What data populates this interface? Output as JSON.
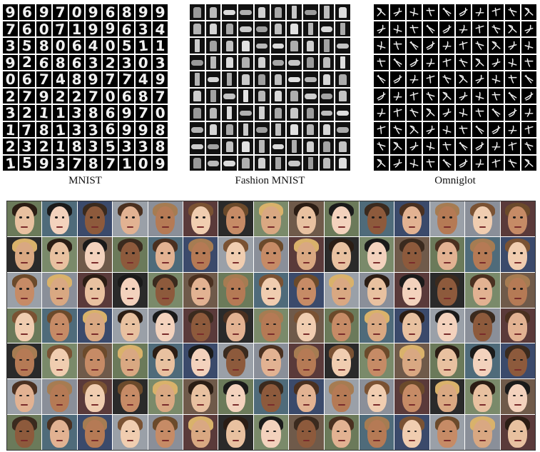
{
  "captions": {
    "mnist": "MNIST",
    "fashion": "Fashion MNIST",
    "omniglot": "Omniglot"
  },
  "mnist_digits": [
    "9",
    "6",
    "9",
    "7",
    "0",
    "9",
    "6",
    "8",
    "9",
    "9",
    "7",
    "6",
    "0",
    "7",
    "1",
    "9",
    "9",
    "6",
    "3",
    "4",
    "3",
    "5",
    "8",
    "0",
    "6",
    "4",
    "0",
    "5",
    "1",
    "1",
    "9",
    "2",
    "6",
    "8",
    "6",
    "3",
    "2",
    "3",
    "0",
    "3",
    "0",
    "6",
    "7",
    "4",
    "8",
    "9",
    "7",
    "7",
    "4",
    "9",
    "2",
    "7",
    "9",
    "2",
    "2",
    "7",
    "0",
    "6",
    "8",
    "7",
    "3",
    "2",
    "1",
    "1",
    "3",
    "8",
    "6",
    "9",
    "7",
    "0",
    "1",
    "7",
    "8",
    "1",
    "3",
    "3",
    "6",
    "9",
    "9",
    "8",
    "2",
    "3",
    "2",
    "1",
    "8",
    "3",
    "5",
    "3",
    "3",
    "8",
    "1",
    "5",
    "9",
    "3",
    "7",
    "8",
    "7",
    "1",
    "0",
    "9"
  ],
  "colors": {
    "tile_background": "#000000",
    "fashion_item": "#bdbdbd",
    "face_border": "#333333"
  }
}
